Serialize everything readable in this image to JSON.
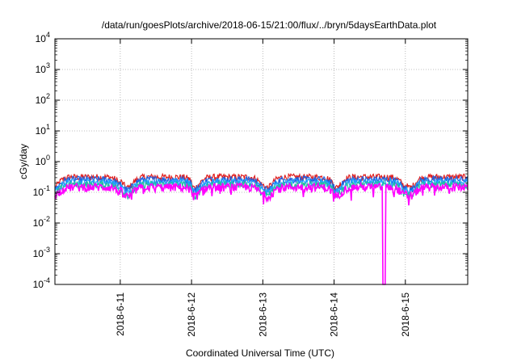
{
  "chart_data": {
    "type": "line",
    "title": "/data/run/goesPlots/archive/2018-06-15/21:00/flux/../bryn/5daysEarthData.plot",
    "xlabel": "Coordinated Universal Time (UTC)",
    "ylabel": "cGy/day",
    "yscale": "log",
    "ylim": [
      0.0001,
      10000
    ],
    "xlim": [
      "2018-06-10 02:00",
      "2018-06-15 21:00"
    ],
    "grid": true,
    "legend": "none",
    "x_ticks": [
      "2018-6-11",
      "2018-6-12",
      "2018-6-13",
      "2018-6-14",
      "2018-6-15"
    ],
    "y_ticks": [
      {
        "base": "10",
        "exp": "4"
      },
      {
        "base": "10",
        "exp": "3"
      },
      {
        "base": "10",
        "exp": "2"
      },
      {
        "base": "10",
        "exp": "1"
      },
      {
        "base": "10",
        "exp": "0"
      },
      {
        "base": "10",
        "exp": "-1"
      },
      {
        "base": "10",
        "exp": "-2"
      },
      {
        "base": "10",
        "exp": "-3"
      },
      {
        "base": "10",
        "exp": "-4"
      }
    ],
    "series": [
      {
        "color": "#e02020",
        "baseline": 0.3,
        "amplitude": 0.16,
        "dip": 0.55
      },
      {
        "color": "#2060e0",
        "baseline": 0.25,
        "amplitude": 0.14,
        "dip": 0.55
      },
      {
        "color": "#20a0ff",
        "baseline": 0.21,
        "amplitude": 0.12,
        "dip": 0.55
      },
      {
        "color": "#20c0a0",
        "baseline": 0.17,
        "amplitude": 0.1,
        "dip": 0.55
      },
      {
        "color": "#ff00ff",
        "baseline": 0.14,
        "amplitude": 0.09,
        "dip": 0.5,
        "spike_dropout": {
          "day": "2018-06-14",
          "hour": 16.8,
          "value": 0.0001
        }
      }
    ],
    "daily_dip_hours": [
      1.5,
      2.5,
      1.0,
      1.5,
      0.5,
      1.5
    ]
  }
}
